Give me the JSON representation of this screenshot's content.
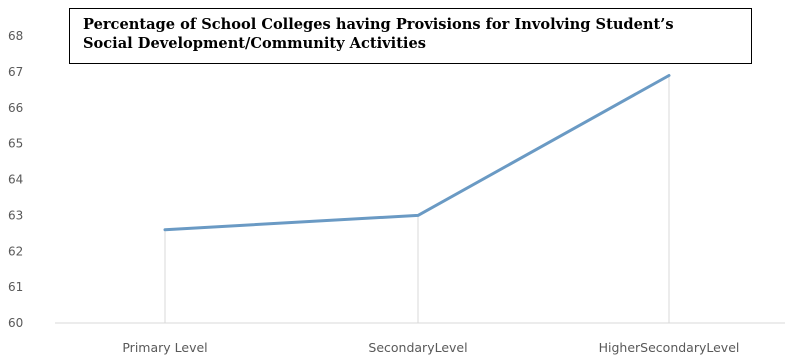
{
  "chart_data": {
    "type": "line",
    "title_lines": [
      "Percentage of School Colleges having Provisions for Involving Student’s",
      "Social Development/Community Activities"
    ],
    "categories": [
      "Primary Level",
      "Secondary Level",
      "Higher Secondary Level"
    ],
    "category_labels": [
      "Primary Level",
      "SecondaryLevel",
      "HigherSecondaryLevel"
    ],
    "values": [
      62.6,
      63.0,
      66.9
    ],
    "ylim": [
      60,
      68
    ],
    "yticks": [
      60,
      61,
      62,
      63,
      64,
      65,
      66,
      67,
      68
    ],
    "grid": false,
    "legend": "none",
    "line_color": "#6a9ac4",
    "drop_line_color": "#d9d9d9",
    "axis_color": "#d9d9d9",
    "text_color": "#595959"
  }
}
